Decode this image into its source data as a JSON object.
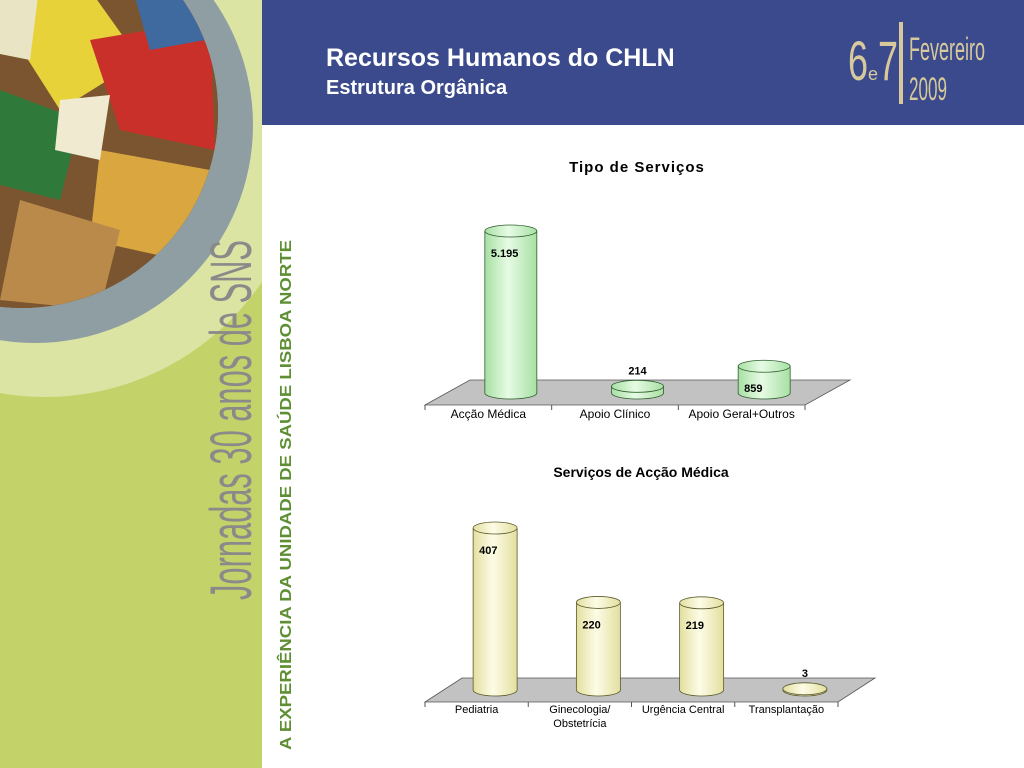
{
  "header": {
    "title": "Recursos Humanos do CHLN",
    "subtitle": "Estrutura Orgânica"
  },
  "logo": {
    "day1": "6",
    "joiner": "e",
    "day2": "7",
    "month": "Fevereiro",
    "year": "2009"
  },
  "sidebar": {
    "event": "Jornadas 30 anos de SNS",
    "tagline": "A EXPERIÊNCIA DA UNIDADE DE SAÚDE LISBOA NORTE"
  },
  "chart_data": [
    {
      "type": "bar",
      "title": "Tipo de Serviços",
      "categories": [
        "Acção Médica",
        "Apoio Clínico",
        "Apoio Geral+Outros"
      ],
      "values": [
        5195,
        214,
        859
      ],
      "value_labels": [
        "5.195",
        "214",
        "859"
      ],
      "color": "#cdf5c9"
    },
    {
      "type": "bar",
      "title": "Serviços de Acção Médica",
      "categories": [
        "Pediatria",
        "Ginecologia/ Obstetrícia",
        "Urgência Central",
        "Transplantação"
      ],
      "values": [
        407,
        220,
        219,
        3
      ],
      "color": "#f6f3c2"
    }
  ]
}
